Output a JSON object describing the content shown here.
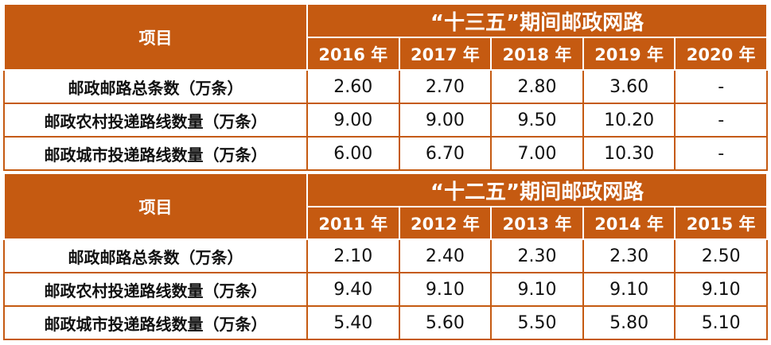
{
  "sections": [
    {
      "header": "项目",
      "title": "“十三五”期间邮政网路",
      "years": [
        "2016 年",
        "2017 年",
        "2018 年",
        "2019 年",
        "2020 年"
      ],
      "rows": [
        {
          "label": "邮政邮路总条数（万条）",
          "values": [
            "2.60",
            "2.70",
            "2.80",
            "3.60",
            "-"
          ]
        },
        {
          "label": "邮政农村投递路线数量（万条）",
          "values": [
            "9.00",
            "9.00",
            "9.50",
            "10.20",
            "-"
          ]
        },
        {
          "label": "邮政城市投递路线数量（万条）",
          "values": [
            "6.00",
            "6.70",
            "7.00",
            "10.30",
            "-"
          ]
        }
      ]
    },
    {
      "header": "项目",
      "title": "“十二五”期间邮政网路",
      "years": [
        "2011 年",
        "2012 年",
        "2013 年",
        "2014 年",
        "2015 年"
      ],
      "rows": [
        {
          "label": "邮政邮路总条数（万条）",
          "values": [
            "2.10",
            "2.40",
            "2.30",
            "2.30",
            "2.50"
          ]
        },
        {
          "label": "邮政农村投递路线数量（万条）",
          "values": [
            "9.40",
            "9.10",
            "9.10",
            "9.10",
            "9.10"
          ]
        },
        {
          "label": "邮政城市投递路线数量（万条）",
          "values": [
            "5.40",
            "5.60",
            "5.50",
            "5.80",
            "5.10"
          ]
        }
      ]
    }
  ]
}
